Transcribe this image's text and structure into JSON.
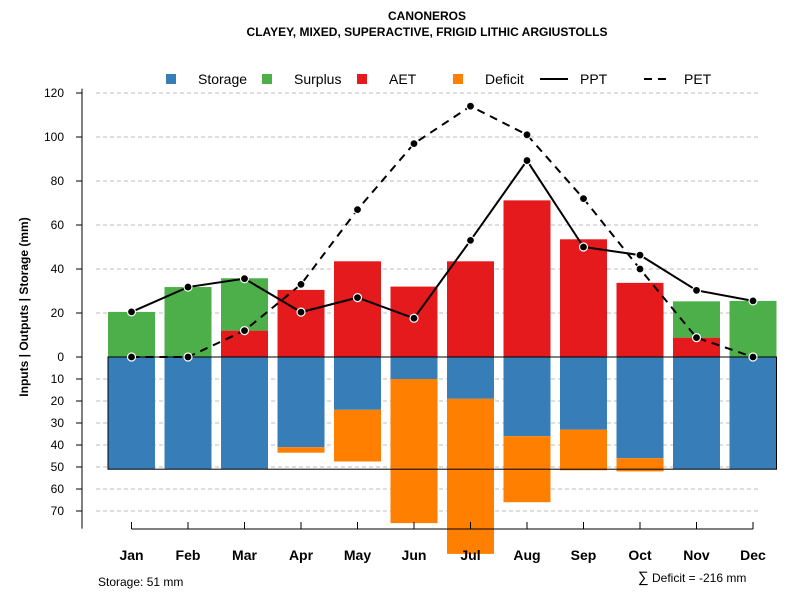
{
  "chart_data": {
    "type": "bar",
    "title": "CANONEROS",
    "subtitle": "CLAYEY, MIXED, SUPERACTIVE, FRIGID LITHIC ARGIUSTOLLS",
    "ylabel": "Inputs | Outputs | Storage     (mm)",
    "ylim": [
      -78,
      122
    ],
    "y_ticks": [
      {
        "value": 120,
        "label": "120"
      },
      {
        "value": 100,
        "label": "100"
      },
      {
        "value": 80,
        "label": "80"
      },
      {
        "value": 60,
        "label": "60"
      },
      {
        "value": 40,
        "label": "40"
      },
      {
        "value": 20,
        "label": "20"
      },
      {
        "value": 0,
        "label": "0"
      },
      {
        "value": -10,
        "label": "10"
      },
      {
        "value": -20,
        "label": "20"
      },
      {
        "value": -30,
        "label": "30"
      },
      {
        "value": -40,
        "label": "40"
      },
      {
        "value": -50,
        "label": "50"
      },
      {
        "value": -60,
        "label": "60"
      },
      {
        "value": -70,
        "label": "70"
      }
    ],
    "grid": true,
    "categories": [
      "Jan",
      "Feb",
      "Mar",
      "Apr",
      "May",
      "Jun",
      "Jul",
      "Aug",
      "Sep",
      "Oct",
      "Nov",
      "Dec"
    ],
    "storage_capacity": 51,
    "series": [
      {
        "name": "Storage",
        "color": "#377EB8",
        "values": [
          51,
          51,
          51,
          41,
          24,
          10,
          19,
          36,
          33,
          46,
          51,
          51
        ]
      },
      {
        "name": "Surplus",
        "color": "#4DAF4A",
        "values": [
          20.5,
          31.8,
          23.8,
          0,
          0,
          0,
          0,
          0,
          0,
          0,
          16.5,
          25.5
        ]
      },
      {
        "name": "AET",
        "color": "#E41A1C",
        "values": [
          0,
          0,
          12,
          30.5,
          43.5,
          32,
          43.5,
          71.2,
          53.5,
          33.7,
          8.8,
          0
        ]
      },
      {
        "name": "Deficit",
        "color": "#FF7F00",
        "values": [
          0,
          0,
          0,
          2.5,
          23.5,
          65.5,
          70.5,
          30,
          18.5,
          6,
          0,
          0
        ]
      },
      {
        "name": "PPT",
        "color": "#000000",
        "style": "solid",
        "values": [
          20.5,
          31.8,
          35.6,
          20.4,
          27,
          17.6,
          53,
          89.3,
          50,
          46.3,
          30.3,
          25.5
        ]
      },
      {
        "name": "PET",
        "color": "#000000",
        "style": "dashed",
        "values": [
          0,
          0,
          12,
          33,
          67,
          97,
          114,
          101,
          72,
          40,
          8.8,
          0
        ]
      }
    ],
    "legend_position": "top",
    "legend": [
      {
        "label": "Storage",
        "kind": "square",
        "color": "#377EB8"
      },
      {
        "label": "Surplus",
        "kind": "square",
        "color": "#4DAF4A"
      },
      {
        "label": "AET",
        "kind": "square",
        "color": "#E41A1C"
      },
      {
        "label": "Deficit",
        "kind": "square",
        "color": "#FF7F00"
      },
      {
        "label": "PPT",
        "kind": "solid-line",
        "color": "#000000"
      },
      {
        "label": "PET",
        "kind": "dashed-line",
        "color": "#000000"
      }
    ],
    "footer_left": "Storage: 51 mm",
    "footer_right_symbol": "∑",
    "footer_right": "Deficit = -216 mm"
  }
}
